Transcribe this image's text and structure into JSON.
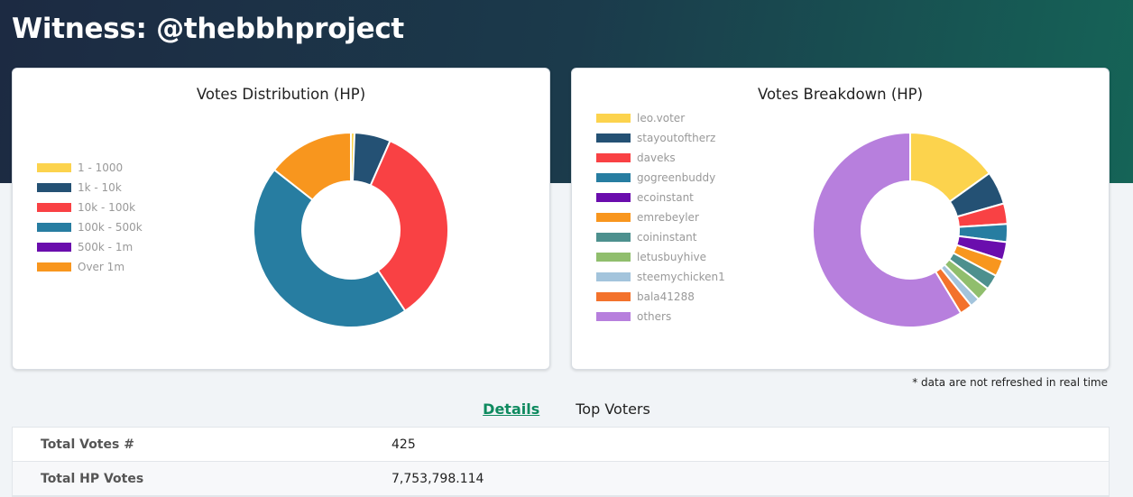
{
  "header": {
    "title": "Witness: @thebbhproject"
  },
  "colors": {
    "yellow": "#fcd34d",
    "navy": "#245174",
    "red": "#f94144",
    "teal": "#277da1",
    "purple": "#6a0dad",
    "orange": "#f8961e",
    "sea": "#4d908e",
    "green": "#90be6d",
    "lightblue": "#a3c4dc",
    "deeporange": "#f3722c",
    "lavender": "#b77fdd",
    "accent": "#0e8a5f"
  },
  "chart_data": [
    {
      "type": "pie",
      "title": "Votes Distribution (HP)",
      "categories": [
        "1 - 1000",
        "1k - 10k",
        "10k - 100k",
        "100k - 500k",
        "500k - 1m",
        "Over 1m"
      ],
      "values": [
        0.6,
        6.0,
        34.0,
        45.0,
        0,
        14.4
      ],
      "colors": [
        "#fcd34d",
        "#245174",
        "#f94144",
        "#277da1",
        "#6a0dad",
        "#f8961e"
      ],
      "legend": "left"
    },
    {
      "type": "pie",
      "title": "Votes Breakdown (HP)",
      "categories": [
        "leo.voter",
        "stayoutoftherz",
        "daveks",
        "gogreenbuddy",
        "ecoinstant",
        "emrebeyler",
        "coininstant",
        "letusbuyhive",
        "steemychicken1",
        "bala41288",
        "others"
      ],
      "values": [
        15.1,
        5.5,
        3.4,
        3.0,
        3.0,
        2.8,
        2.5,
        2.3,
        1.6,
        2.1,
        58.7
      ],
      "colors": [
        "#fcd34d",
        "#245174",
        "#f94144",
        "#277da1",
        "#6a0dad",
        "#f8961e",
        "#4d908e",
        "#90be6d",
        "#a3c4dc",
        "#f3722c",
        "#b77fdd"
      ],
      "legend": "left"
    }
  ],
  "note": "* data are not refreshed in real time",
  "tabs": [
    {
      "label": "Details",
      "active": true
    },
    {
      "label": "Top Voters",
      "active": false
    }
  ],
  "details": [
    {
      "label": "Total Votes #",
      "value": "425"
    },
    {
      "label": "Total HP Votes",
      "value": "7,753,798.114"
    }
  ]
}
